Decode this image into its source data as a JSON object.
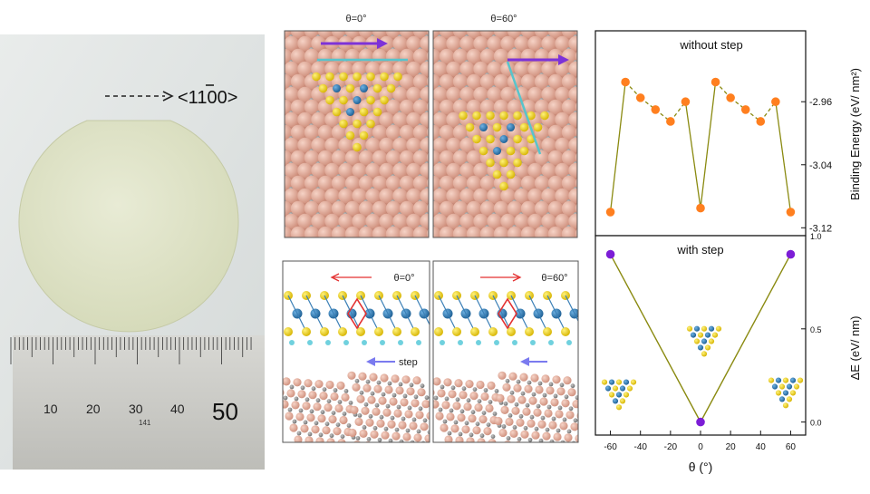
{
  "photo": {
    "direction_prefix": "<1",
    "direction_bar_digit": "1",
    "direction_suffix": "00>",
    "ruler_labels": [
      "10",
      "20",
      "30",
      "40",
      "50"
    ],
    "ruler_small_label": "141"
  },
  "panels": {
    "top_left_title": "θ=0°",
    "top_right_title": "θ=60°",
    "bottom_left_angle": "θ=0°",
    "bottom_right_angle": "θ=60°",
    "step_label": "step"
  },
  "colors": {
    "substrate": "#e5ad9b",
    "sulfur": "#f2d21a",
    "metal": "#2f79b5",
    "carbon": "#8b8b8b",
    "orange_point": "#ff7f1f",
    "purple_point": "#7c1dd6",
    "line": "#8a8a10",
    "arrow_purple": "#7d32d8",
    "arrow_cyan": "#58c4cc",
    "arrow_red": "#e33030"
  },
  "chart_data": [
    {
      "type": "line",
      "title": "without step",
      "ylabel": "Binding Energy  (eV/ nm²)",
      "x": [
        -60,
        -50,
        -40,
        -30,
        -20,
        -10,
        0,
        10,
        20,
        30,
        40,
        50,
        60
      ],
      "series": [
        {
          "values": [
            -3.1,
            -2.935,
            -2.955,
            -2.97,
            -2.985,
            -2.96,
            -3.095,
            -2.935,
            -2.955,
            -2.97,
            -2.985,
            -2.96,
            -3.1
          ]
        }
      ],
      "xlim": [
        -70,
        70
      ],
      "ylim": [
        -3.13,
        -2.87
      ],
      "yticks": [
        -2.96,
        -3.04,
        -3.12
      ],
      "ytick_labels": [
        "-2.96",
        "-3.04",
        "-3.12"
      ]
    },
    {
      "type": "line",
      "title": "with step",
      "xlabel": "θ (°)",
      "ylabel": "ΔE  (eV/ nm)",
      "x": [
        -60,
        0,
        60
      ],
      "series": [
        {
          "values": [
            0.9,
            0.0,
            0.9
          ]
        }
      ],
      "xlim": [
        -70,
        70
      ],
      "ylim": [
        -0.07,
        1.0
      ],
      "xticks": [
        -60,
        -40,
        -20,
        0,
        20,
        40,
        60
      ],
      "xtick_labels": [
        "-60",
        "-40",
        "-20",
        "0",
        "20",
        "40",
        "60"
      ],
      "yticks": [
        0.0,
        0.5,
        1.0
      ],
      "ytick_labels": [
        "0.0",
        "0.5",
        "1.0"
      ]
    }
  ]
}
